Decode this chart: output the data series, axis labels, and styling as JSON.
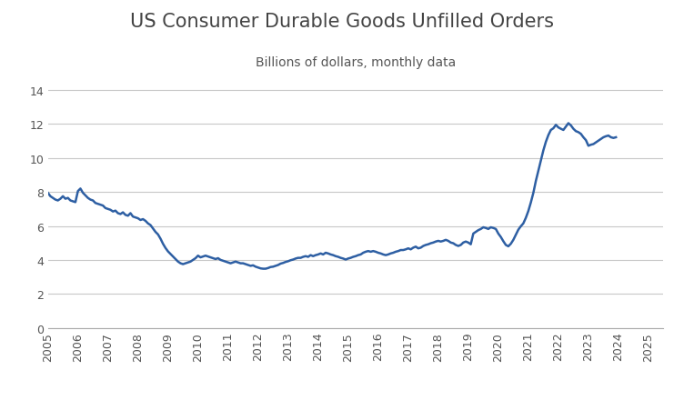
{
  "title": "US Consumer Durable Goods Unfilled Orders",
  "subtitle": "Billions of dollars, monthly data",
  "line_color": "#2E5FA3",
  "background_color": "#ffffff",
  "grid_color": "#c8c8c8",
  "xlim": [
    2005,
    2025.5
  ],
  "ylim": [
    0,
    15
  ],
  "yticks": [
    0,
    2,
    4,
    6,
    8,
    10,
    12,
    14
  ],
  "xticks": [
    2005,
    2006,
    2007,
    2008,
    2009,
    2010,
    2011,
    2012,
    2013,
    2014,
    2015,
    2016,
    2017,
    2018,
    2019,
    2020,
    2021,
    2022,
    2023,
    2024,
    2025
  ],
  "series": [
    [
      2005.0,
      7.95
    ],
    [
      2005.083,
      7.75
    ],
    [
      2005.167,
      7.65
    ],
    [
      2005.25,
      7.55
    ],
    [
      2005.333,
      7.5
    ],
    [
      2005.417,
      7.6
    ],
    [
      2005.5,
      7.75
    ],
    [
      2005.583,
      7.6
    ],
    [
      2005.667,
      7.65
    ],
    [
      2005.75,
      7.5
    ],
    [
      2005.833,
      7.45
    ],
    [
      2005.917,
      7.4
    ],
    [
      2006.0,
      8.05
    ],
    [
      2006.083,
      8.2
    ],
    [
      2006.167,
      7.95
    ],
    [
      2006.25,
      7.8
    ],
    [
      2006.333,
      7.65
    ],
    [
      2006.417,
      7.55
    ],
    [
      2006.5,
      7.5
    ],
    [
      2006.583,
      7.35
    ],
    [
      2006.667,
      7.3
    ],
    [
      2006.75,
      7.25
    ],
    [
      2006.833,
      7.2
    ],
    [
      2006.917,
      7.05
    ],
    [
      2007.0,
      7.0
    ],
    [
      2007.083,
      6.95
    ],
    [
      2007.167,
      6.85
    ],
    [
      2007.25,
      6.9
    ],
    [
      2007.333,
      6.75
    ],
    [
      2007.417,
      6.7
    ],
    [
      2007.5,
      6.8
    ],
    [
      2007.583,
      6.65
    ],
    [
      2007.667,
      6.6
    ],
    [
      2007.75,
      6.75
    ],
    [
      2007.833,
      6.55
    ],
    [
      2007.917,
      6.5
    ],
    [
      2008.0,
      6.45
    ],
    [
      2008.083,
      6.35
    ],
    [
      2008.167,
      6.4
    ],
    [
      2008.25,
      6.3
    ],
    [
      2008.333,
      6.15
    ],
    [
      2008.417,
      6.05
    ],
    [
      2008.5,
      5.85
    ],
    [
      2008.583,
      5.65
    ],
    [
      2008.667,
      5.5
    ],
    [
      2008.75,
      5.25
    ],
    [
      2008.833,
      4.95
    ],
    [
      2008.917,
      4.7
    ],
    [
      2009.0,
      4.5
    ],
    [
      2009.083,
      4.35
    ],
    [
      2009.167,
      4.2
    ],
    [
      2009.25,
      4.05
    ],
    [
      2009.333,
      3.9
    ],
    [
      2009.417,
      3.8
    ],
    [
      2009.5,
      3.75
    ],
    [
      2009.583,
      3.8
    ],
    [
      2009.667,
      3.85
    ],
    [
      2009.75,
      3.9
    ],
    [
      2009.833,
      4.0
    ],
    [
      2009.917,
      4.1
    ],
    [
      2010.0,
      4.25
    ],
    [
      2010.083,
      4.15
    ],
    [
      2010.167,
      4.2
    ],
    [
      2010.25,
      4.25
    ],
    [
      2010.333,
      4.2
    ],
    [
      2010.417,
      4.15
    ],
    [
      2010.5,
      4.1
    ],
    [
      2010.583,
      4.05
    ],
    [
      2010.667,
      4.1
    ],
    [
      2010.75,
      4.0
    ],
    [
      2010.833,
      3.95
    ],
    [
      2010.917,
      3.9
    ],
    [
      2011.0,
      3.85
    ],
    [
      2011.083,
      3.8
    ],
    [
      2011.167,
      3.85
    ],
    [
      2011.25,
      3.9
    ],
    [
      2011.333,
      3.85
    ],
    [
      2011.417,
      3.8
    ],
    [
      2011.5,
      3.8
    ],
    [
      2011.583,
      3.75
    ],
    [
      2011.667,
      3.7
    ],
    [
      2011.75,
      3.65
    ],
    [
      2011.833,
      3.68
    ],
    [
      2011.917,
      3.6
    ],
    [
      2012.0,
      3.55
    ],
    [
      2012.083,
      3.5
    ],
    [
      2012.167,
      3.48
    ],
    [
      2012.25,
      3.48
    ],
    [
      2012.333,
      3.52
    ],
    [
      2012.417,
      3.58
    ],
    [
      2012.5,
      3.6
    ],
    [
      2012.583,
      3.65
    ],
    [
      2012.667,
      3.7
    ],
    [
      2012.75,
      3.78
    ],
    [
      2012.833,
      3.82
    ],
    [
      2012.917,
      3.88
    ],
    [
      2013.0,
      3.92
    ],
    [
      2013.083,
      3.98
    ],
    [
      2013.167,
      4.02
    ],
    [
      2013.25,
      4.08
    ],
    [
      2013.333,
      4.12
    ],
    [
      2013.417,
      4.12
    ],
    [
      2013.5,
      4.18
    ],
    [
      2013.583,
      4.22
    ],
    [
      2013.667,
      4.18
    ],
    [
      2013.75,
      4.28
    ],
    [
      2013.833,
      4.22
    ],
    [
      2013.917,
      4.28
    ],
    [
      2014.0,
      4.32
    ],
    [
      2014.083,
      4.38
    ],
    [
      2014.167,
      4.32
    ],
    [
      2014.25,
      4.42
    ],
    [
      2014.333,
      4.38
    ],
    [
      2014.417,
      4.32
    ],
    [
      2014.5,
      4.28
    ],
    [
      2014.583,
      4.22
    ],
    [
      2014.667,
      4.18
    ],
    [
      2014.75,
      4.12
    ],
    [
      2014.833,
      4.08
    ],
    [
      2014.917,
      4.02
    ],
    [
      2015.0,
      4.08
    ],
    [
      2015.083,
      4.12
    ],
    [
      2015.167,
      4.18
    ],
    [
      2015.25,
      4.22
    ],
    [
      2015.333,
      4.28
    ],
    [
      2015.417,
      4.32
    ],
    [
      2015.5,
      4.42
    ],
    [
      2015.583,
      4.48
    ],
    [
      2015.667,
      4.52
    ],
    [
      2015.75,
      4.48
    ],
    [
      2015.833,
      4.52
    ],
    [
      2015.917,
      4.48
    ],
    [
      2016.0,
      4.42
    ],
    [
      2016.083,
      4.38
    ],
    [
      2016.167,
      4.32
    ],
    [
      2016.25,
      4.28
    ],
    [
      2016.333,
      4.32
    ],
    [
      2016.417,
      4.38
    ],
    [
      2016.5,
      4.42
    ],
    [
      2016.583,
      4.48
    ],
    [
      2016.667,
      4.52
    ],
    [
      2016.75,
      4.58
    ],
    [
      2016.833,
      4.58
    ],
    [
      2016.917,
      4.62
    ],
    [
      2017.0,
      4.68
    ],
    [
      2017.083,
      4.62
    ],
    [
      2017.167,
      4.72
    ],
    [
      2017.25,
      4.78
    ],
    [
      2017.333,
      4.68
    ],
    [
      2017.417,
      4.72
    ],
    [
      2017.5,
      4.82
    ],
    [
      2017.583,
      4.88
    ],
    [
      2017.667,
      4.92
    ],
    [
      2017.75,
      4.98
    ],
    [
      2017.833,
      5.02
    ],
    [
      2017.917,
      5.08
    ],
    [
      2018.0,
      5.12
    ],
    [
      2018.083,
      5.08
    ],
    [
      2018.167,
      5.12
    ],
    [
      2018.25,
      5.18
    ],
    [
      2018.333,
      5.12
    ],
    [
      2018.417,
      5.02
    ],
    [
      2018.5,
      4.98
    ],
    [
      2018.583,
      4.88
    ],
    [
      2018.667,
      4.82
    ],
    [
      2018.75,
      4.88
    ],
    [
      2018.833,
      5.02
    ],
    [
      2018.917,
      5.08
    ],
    [
      2019.0,
      5.02
    ],
    [
      2019.083,
      4.92
    ],
    [
      2019.167,
      5.55
    ],
    [
      2019.25,
      5.65
    ],
    [
      2019.333,
      5.75
    ],
    [
      2019.417,
      5.82
    ],
    [
      2019.5,
      5.92
    ],
    [
      2019.583,
      5.88
    ],
    [
      2019.667,
      5.82
    ],
    [
      2019.75,
      5.92
    ],
    [
      2019.833,
      5.88
    ],
    [
      2019.917,
      5.82
    ],
    [
      2020.0,
      5.55
    ],
    [
      2020.083,
      5.35
    ],
    [
      2020.167,
      5.1
    ],
    [
      2020.25,
      4.88
    ],
    [
      2020.333,
      4.8
    ],
    [
      2020.417,
      4.95
    ],
    [
      2020.5,
      5.18
    ],
    [
      2020.583,
      5.48
    ],
    [
      2020.667,
      5.78
    ],
    [
      2020.75,
      5.98
    ],
    [
      2020.833,
      6.15
    ],
    [
      2020.917,
      6.48
    ],
    [
      2021.0,
      6.88
    ],
    [
      2021.083,
      7.38
    ],
    [
      2021.167,
      7.95
    ],
    [
      2021.25,
      8.65
    ],
    [
      2021.333,
      9.25
    ],
    [
      2021.417,
      9.85
    ],
    [
      2021.5,
      10.45
    ],
    [
      2021.583,
      10.95
    ],
    [
      2021.667,
      11.35
    ],
    [
      2021.75,
      11.65
    ],
    [
      2021.833,
      11.75
    ],
    [
      2021.917,
      11.95
    ],
    [
      2022.0,
      11.8
    ],
    [
      2022.083,
      11.72
    ],
    [
      2022.167,
      11.65
    ],
    [
      2022.25,
      11.85
    ],
    [
      2022.333,
      12.05
    ],
    [
      2022.417,
      11.92
    ],
    [
      2022.5,
      11.72
    ],
    [
      2022.583,
      11.58
    ],
    [
      2022.667,
      11.52
    ],
    [
      2022.75,
      11.42
    ],
    [
      2022.833,
      11.22
    ],
    [
      2022.917,
      11.05
    ],
    [
      2023.0,
      10.72
    ],
    [
      2023.083,
      10.78
    ],
    [
      2023.167,
      10.82
    ],
    [
      2023.25,
      10.92
    ],
    [
      2023.333,
      11.02
    ],
    [
      2023.417,
      11.12
    ],
    [
      2023.5,
      11.22
    ],
    [
      2023.583,
      11.28
    ],
    [
      2023.667,
      11.32
    ],
    [
      2023.75,
      11.22
    ],
    [
      2023.833,
      11.18
    ],
    [
      2023.917,
      11.22
    ]
  ]
}
